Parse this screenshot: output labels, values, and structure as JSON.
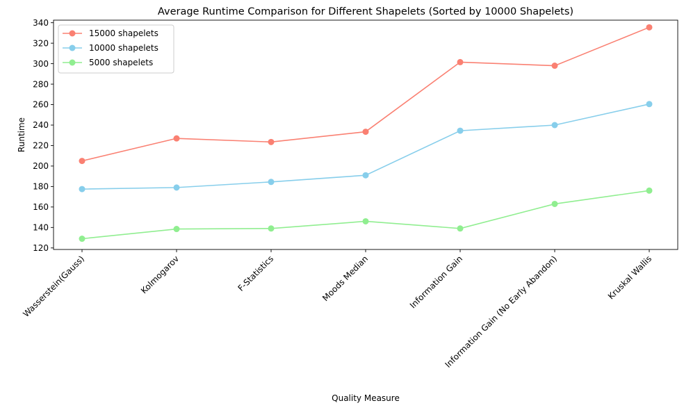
{
  "chart_data": {
    "type": "line",
    "title": "Average Runtime Comparison for Different Shapelets (Sorted by 10000 Shapelets)",
    "xlabel": "Quality Measure",
    "ylabel": "Runtime",
    "categories": [
      "Wasserstein(Gauss)",
      "Kolmogarov",
      "F-Statistics",
      "Moods Median",
      "Information Gain",
      "Information Gain (No Early Abandon)",
      "Kruskal Wallis"
    ],
    "ylim": [
      118.5,
      342.5
    ],
    "yticks": [
      120,
      140,
      160,
      180,
      200,
      220,
      240,
      260,
      280,
      300,
      320,
      340
    ],
    "grid": false,
    "legend_position": "top-left",
    "series": [
      {
        "name": "15000 shapelets",
        "color": "#fa8072",
        "values": [
          205,
          227,
          223.5,
          233.5,
          301.5,
          298,
          335.5
        ]
      },
      {
        "name": "10000 shapelets",
        "color": "#87ceeb",
        "values": [
          177.5,
          179,
          184.5,
          191,
          234.5,
          240,
          260.5
        ]
      },
      {
        "name": "5000 shapelets",
        "color": "#90ee90",
        "values": [
          129,
          138.5,
          139,
          146,
          139,
          163,
          176
        ]
      }
    ]
  }
}
